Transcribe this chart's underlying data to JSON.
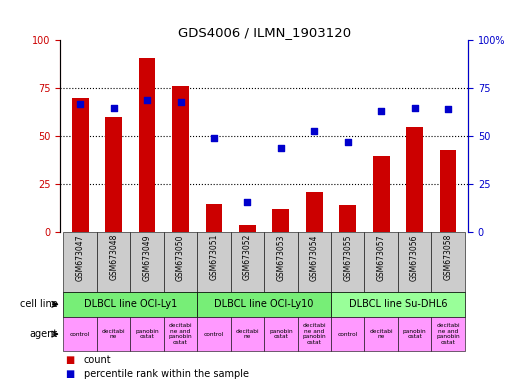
{
  "title": "GDS4006 / ILMN_1903120",
  "samples": [
    "GSM673047",
    "GSM673048",
    "GSM673049",
    "GSM673050",
    "GSM673051",
    "GSM673052",
    "GSM673053",
    "GSM673054",
    "GSM673055",
    "GSM673057",
    "GSM673056",
    "GSM673058"
  ],
  "counts": [
    70,
    60,
    91,
    76,
    15,
    4,
    12,
    21,
    14,
    40,
    55,
    43
  ],
  "percentiles": [
    67,
    65,
    69,
    68,
    49,
    16,
    44,
    53,
    47,
    63,
    65,
    64
  ],
  "count_color": "#cc0000",
  "percentile_color": "#0000cc",
  "bar_width": 0.5,
  "ylim": [
    0,
    100
  ],
  "yticks": [
    0,
    25,
    50,
    75,
    100
  ],
  "cell_line_groups": [
    {
      "label": "DLBCL line OCI-Ly1",
      "indices": [
        0,
        1,
        2,
        3
      ],
      "color": "#77ee77"
    },
    {
      "label": "DLBCL line OCI-Ly10",
      "indices": [
        4,
        5,
        6,
        7
      ],
      "color": "#77ee77"
    },
    {
      "label": "DLBCL line Su-DHL6",
      "indices": [
        8,
        9,
        10,
        11
      ],
      "color": "#99ff99"
    }
  ],
  "agent_labels": [
    "control",
    "decitabi\nne",
    "panobin\nostat",
    "decitabi\nne and\npanobin\nostat",
    "control",
    "decitabi\nne",
    "panobin\nostat",
    "decitabi\nne and\npanobin\nostat",
    "control",
    "decitabi\nne",
    "panobin\nostat",
    "decitabi\nne and\npanobin\nostat"
  ],
  "agent_color": "#ff99ff",
  "tick_bg_color": "#cccccc",
  "cell_line_row_label": "cell line",
  "agent_row_label": "agent",
  "legend_count_label": "count",
  "legend_percentile_label": "percentile rank within the sample"
}
